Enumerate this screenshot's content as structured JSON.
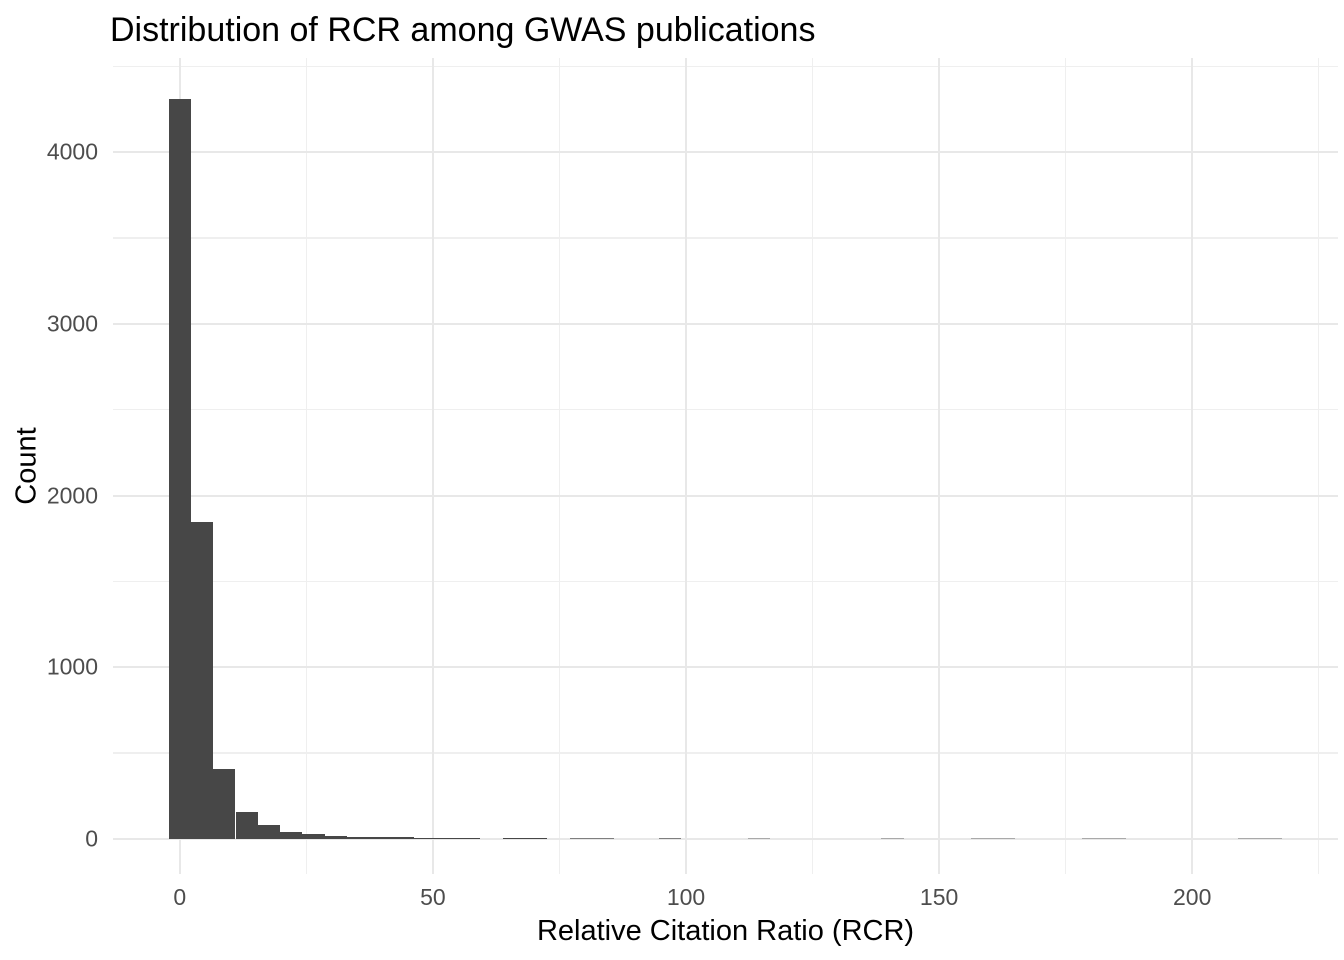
{
  "chart_data": {
    "type": "bar",
    "subtype": "histogram",
    "title": "Distribution of RCR among GWAS publications",
    "xlabel": "Relative Citation Ratio (RCR)",
    "ylabel": "Count",
    "x_ticks": [
      0,
      50,
      100,
      150,
      200
    ],
    "x_minor_ticks": [
      25,
      75,
      125,
      175,
      225
    ],
    "y_ticks": [
      0,
      1000,
      2000,
      3000,
      4000
    ],
    "y_minor_ticks": [
      500,
      1500,
      2500,
      3500,
      4500
    ],
    "xlim": [
      -13.2,
      228.8
    ],
    "ylim": [
      -205,
      4550
    ],
    "binwidth": 4.4,
    "bins": [
      {
        "center": 0,
        "count": 4310
      },
      {
        "center": 4.4,
        "count": 1845
      },
      {
        "center": 8.8,
        "count": 405
      },
      {
        "center": 13.2,
        "count": 155
      },
      {
        "center": 17.6,
        "count": 78
      },
      {
        "center": 22,
        "count": 40
      },
      {
        "center": 26.4,
        "count": 28
      },
      {
        "center": 30.8,
        "count": 19
      },
      {
        "center": 35.2,
        "count": 13
      },
      {
        "center": 39.6,
        "count": 9
      },
      {
        "center": 44,
        "count": 11
      },
      {
        "center": 48.4,
        "count": 6
      },
      {
        "center": 52.8,
        "count": 4
      },
      {
        "center": 57.2,
        "count": 4
      },
      {
        "center": 66,
        "count": 3
      },
      {
        "center": 70.4,
        "count": 3
      },
      {
        "center": 79.2,
        "count": 2
      },
      {
        "center": 83.6,
        "count": 2
      },
      {
        "center": 96.8,
        "count": 2
      },
      {
        "center": 114.4,
        "count": 1
      },
      {
        "center": 140.8,
        "count": 1
      },
      {
        "center": 158.4,
        "count": 1
      },
      {
        "center": 162.8,
        "count": 1
      },
      {
        "center": 180.4,
        "count": 1
      },
      {
        "center": 184.8,
        "count": 1
      },
      {
        "center": 211.2,
        "count": 1
      },
      {
        "center": 215.6,
        "count": 1
      }
    ],
    "bar_color": "#474747",
    "faint_bar_colors": {
      "count_1": "#a9a9a9",
      "count_2": "#7f7f7f"
    },
    "grid_major_color": "#e8e8e8",
    "grid_minor_color": "#efefef",
    "background": "#ffffff",
    "tick_label_color": "#4d4d4d",
    "grid": true,
    "legend": false
  }
}
